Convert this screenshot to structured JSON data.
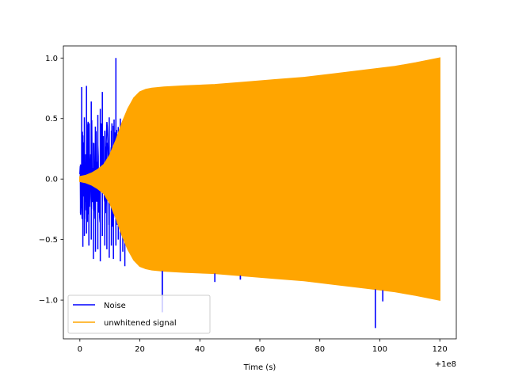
{
  "chart_data": {
    "type": "line",
    "title": "",
    "xlabel": "Time (s)",
    "ylabel": "",
    "x_offset_label": "+1e8",
    "xlim": [
      -5.5,
      125.5
    ],
    "ylim": [
      -1.32,
      1.1
    ],
    "x_ticks": [
      0,
      20,
      40,
      60,
      80,
      100,
      120
    ],
    "x_tick_labels": [
      "0",
      "20",
      "40",
      "60",
      "80",
      "100",
      "120"
    ],
    "y_ticks": [
      -1.0,
      -0.5,
      0.0,
      0.5,
      1.0
    ],
    "y_tick_labels": [
      "−1.0",
      "−0.5",
      "0.0",
      "0.5",
      "1.0"
    ],
    "grid": false,
    "legend": {
      "placement": "lower-left",
      "entries": [
        "Noise",
        "unwhitened signal"
      ]
    },
    "series": [
      {
        "name": "Noise",
        "color": "#0000ff",
        "description_points": {
          "spikes_x": [
            0.2,
            0.6,
            1.0,
            1.5,
            2.2,
            3.0,
            3.8,
            4.5,
            5.2,
            6.0,
            6.8,
            7.5,
            8.3,
            9.0,
            9.8,
            10.5,
            11.2,
            12.0,
            12.8,
            13.5,
            14.3,
            15.0,
            16.0,
            17.5,
            27.5,
            36.0,
            45.0,
            47.5,
            52.0,
            53.5,
            63.0,
            73.0,
            81.5,
            91.5,
            98.5,
            101.0
          ],
          "spikes_y_max": [
            0.12,
            0.76,
            0.36,
            0.51,
            0.77,
            0.25,
            0.64,
            0.3,
            0.38,
            0.53,
            0.58,
            0.72,
            0.4,
            0.3,
            0.51,
            0.4,
            0.44,
            1.0,
            0.43,
            0.5,
            0.48,
            0.5,
            0.3,
            0.25,
            0.39,
            0.6,
            0.75,
            0.64,
            0.62,
            0.78,
            0.79,
            0.58,
            0.25,
            0.1,
            0.62,
            0.25
          ],
          "spikes_y_min": [
            -0.28,
            -0.24,
            -0.56,
            -0.47,
            -0.45,
            -0.55,
            -0.5,
            -0.66,
            -0.6,
            -0.58,
            -0.68,
            -0.47,
            -0.55,
            -0.58,
            -0.65,
            -0.55,
            -0.66,
            -0.55,
            -0.5,
            -0.68,
            -0.6,
            -0.72,
            -0.45,
            -0.3,
            -1.1,
            -0.65,
            -0.85,
            -0.68,
            -0.76,
            -0.83,
            -0.66,
            -0.78,
            -0.85,
            -0.87,
            -1.23,
            -1.01
          ]
        }
      },
      {
        "name": "unwhitened signal",
        "color": "#ffa500",
        "envelope": {
          "x": [
            0,
            2,
            4,
            6,
            8,
            10,
            12,
            14,
            16,
            18,
            20,
            22,
            24,
            28,
            35,
            45,
            55,
            65,
            75,
            85,
            95,
            105,
            112,
            120
          ],
          "amplitude": [
            0.02,
            0.03,
            0.05,
            0.08,
            0.12,
            0.2,
            0.32,
            0.46,
            0.58,
            0.67,
            0.72,
            0.74,
            0.75,
            0.76,
            0.77,
            0.78,
            0.8,
            0.82,
            0.84,
            0.87,
            0.9,
            0.93,
            0.96,
            1.0
          ]
        }
      }
    ]
  }
}
